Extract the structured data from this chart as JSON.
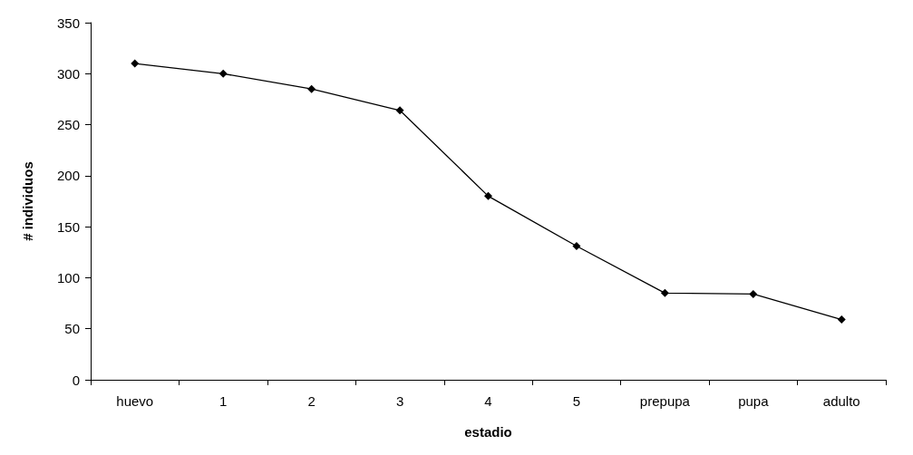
{
  "chart_data": {
    "type": "line",
    "xlabel": "estadio",
    "ylabel": "# individuos",
    "categories": [
      "huevo",
      "1",
      "2",
      "3",
      "4",
      "5",
      "prepupa",
      "pupa",
      "adulto"
    ],
    "series": [
      {
        "color": "#000000",
        "values": [
          310,
          300,
          285,
          264,
          180,
          131,
          85,
          84,
          59
        ]
      }
    ],
    "ylim": [
      0,
      350
    ],
    "yticks": [
      0,
      50,
      100,
      150,
      200,
      250,
      300,
      350
    ],
    "grid": false,
    "marker": "diamond",
    "line_style": "solid"
  }
}
